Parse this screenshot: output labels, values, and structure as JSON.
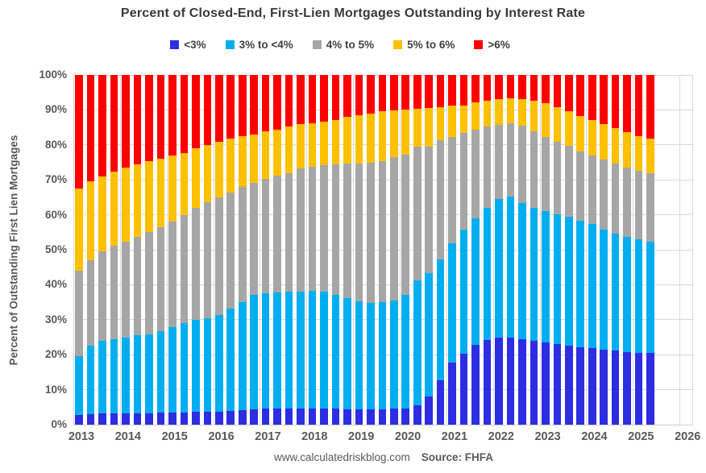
{
  "title": "Percent of Closed-End, First-Lien Mortgages Outstanding by Interest Rate",
  "y_axis_title": "Percent of Outstanding First Lien Mortgages",
  "footer": {
    "site": "www.calculatedriskblog.com",
    "source": "Source: FHFA"
  },
  "colors": {
    "lt3": "#2d2de1",
    "r3to4": "#00aeef",
    "r4to5": "#a6a6a6",
    "r5to6": "#ffc000",
    "gt6": "#fe0000",
    "grid": "#d9d9d9",
    "tick_text": "#595959",
    "title_text": "#3a3a3a"
  },
  "chart_data": {
    "type": "bar",
    "stacked": true,
    "title": "Percent of Closed-End, First-Lien Mortgages Outstanding by Interest Rate",
    "xlabel": "",
    "ylabel": "Percent of Outstanding First Lien Mortgages",
    "ylim": [
      0,
      100
    ],
    "grid": true,
    "legend_position": "top",
    "y_ticks": [
      0,
      10,
      20,
      30,
      40,
      50,
      60,
      70,
      80,
      90,
      100
    ],
    "x_ticks": [
      2013,
      2014,
      2015,
      2016,
      2017,
      2018,
      2019,
      2020,
      2021,
      2022,
      2023,
      2024,
      2025,
      2026
    ],
    "categories": [
      "2013 Q1",
      "2013 Q2",
      "2013 Q3",
      "2013 Q4",
      "2014 Q1",
      "2014 Q2",
      "2014 Q3",
      "2014 Q4",
      "2015 Q1",
      "2015 Q2",
      "2015 Q3",
      "2015 Q4",
      "2016 Q1",
      "2016 Q2",
      "2016 Q3",
      "2016 Q4",
      "2017 Q1",
      "2017 Q2",
      "2017 Q3",
      "2017 Q4",
      "2018 Q1",
      "2018 Q2",
      "2018 Q3",
      "2018 Q4",
      "2019 Q1",
      "2019 Q2",
      "2019 Q3",
      "2019 Q4",
      "2020 Q1",
      "2020 Q2",
      "2020 Q3",
      "2020 Q4",
      "2021 Q1",
      "2021 Q2",
      "2021 Q3",
      "2021 Q4",
      "2022 Q1",
      "2022 Q2",
      "2022 Q3",
      "2022 Q4",
      "2023 Q1",
      "2023 Q2",
      "2023 Q3",
      "2023 Q4",
      "2024 Q1",
      "2024 Q2",
      "2024 Q3",
      "2024 Q4",
      "2025 Q1",
      "2025 Q2"
    ],
    "series": [
      {
        "name": "<3%",
        "color": "#2d2de1",
        "values": [
          2.7,
          3.0,
          3.2,
          3.2,
          3.3,
          3.3,
          3.3,
          3.4,
          3.5,
          3.5,
          3.6,
          3.7,
          3.8,
          3.9,
          4.2,
          4.3,
          4.5,
          4.6,
          4.7,
          4.7,
          4.7,
          4.6,
          4.5,
          4.4,
          4.4,
          4.4,
          4.4,
          4.5,
          4.7,
          5.5,
          8.1,
          12.6,
          17.7,
          20.2,
          22.7,
          24.2,
          24.8,
          24.9,
          24.4,
          23.9,
          23.4,
          23.0,
          22.6,
          22.1,
          21.9,
          21.5,
          21.2,
          20.8,
          20.6,
          20.4
        ]
      },
      {
        "name": "3% to <4%",
        "color": "#00aeef",
        "values": [
          16.8,
          19.5,
          20.8,
          21.2,
          21.7,
          22.2,
          22.6,
          23.3,
          24.3,
          25.5,
          26.4,
          26.8,
          27.5,
          29.2,
          30.8,
          32.7,
          33.0,
          33.3,
          33.3,
          33.4,
          33.5,
          33.4,
          32.7,
          31.8,
          30.9,
          30.5,
          30.6,
          31.0,
          32.3,
          35.7,
          35.2,
          34.7,
          34.1,
          35.6,
          36.2,
          37.8,
          39.7,
          40.3,
          38.9,
          38.2,
          37.7,
          37.1,
          36.9,
          36.1,
          35.5,
          34.3,
          33.5,
          32.9,
          32.3,
          32.0
        ]
      },
      {
        "name": "4% to 5%",
        "color": "#a6a6a6",
        "values": [
          24.4,
          24.5,
          25.5,
          26.8,
          27.4,
          28.3,
          29.1,
          29.8,
          30.3,
          31.0,
          31.9,
          33.1,
          33.7,
          33.2,
          33.0,
          32.2,
          32.8,
          33.3,
          34.0,
          35.1,
          35.6,
          36.2,
          37.2,
          38.4,
          39.3,
          39.9,
          40.4,
          41.0,
          40.3,
          38.2,
          36.3,
          34.0,
          30.5,
          27.5,
          25.4,
          23.2,
          21.3,
          21.0,
          22.3,
          21.8,
          21.2,
          20.8,
          20.2,
          20.0,
          19.6,
          20.1,
          20.0,
          19.7,
          19.7,
          19.4
        ]
      },
      {
        "name": "5% to 6%",
        "color": "#ffc000",
        "values": [
          23.6,
          22.5,
          21.5,
          21.1,
          21.1,
          20.7,
          20.3,
          19.6,
          18.9,
          17.6,
          17.2,
          16.3,
          15.9,
          15.4,
          14.5,
          13.8,
          13.5,
          13.1,
          13.3,
          12.7,
          12.4,
          12.5,
          12.8,
          13.4,
          13.8,
          14.1,
          14.2,
          13.4,
          12.9,
          11.0,
          11.0,
          9.5,
          8.9,
          8.0,
          7.8,
          7.4,
          7.3,
          7.1,
          7.5,
          8.7,
          9.7,
          9.8,
          10.0,
          10.1,
          10.0,
          10.0,
          10.0,
          10.2,
          10.0,
          10.0
        ]
      },
      {
        "name": ">6%",
        "color": "#fe0000",
        "values": [
          32.5,
          30.5,
          29.0,
          27.7,
          26.5,
          25.5,
          24.7,
          23.9,
          23.0,
          22.4,
          20.9,
          20.1,
          19.1,
          18.3,
          17.5,
          17.0,
          16.2,
          15.7,
          14.7,
          14.1,
          13.8,
          13.3,
          12.8,
          12.0,
          11.6,
          11.1,
          10.4,
          10.1,
          9.8,
          9.6,
          9.4,
          9.2,
          8.8,
          8.7,
          7.9,
          7.4,
          6.9,
          6.7,
          6.9,
          7.4,
          8.0,
          9.3,
          10.3,
          11.7,
          13.0,
          14.1,
          15.3,
          16.4,
          17.4,
          18.2
        ]
      }
    ]
  }
}
